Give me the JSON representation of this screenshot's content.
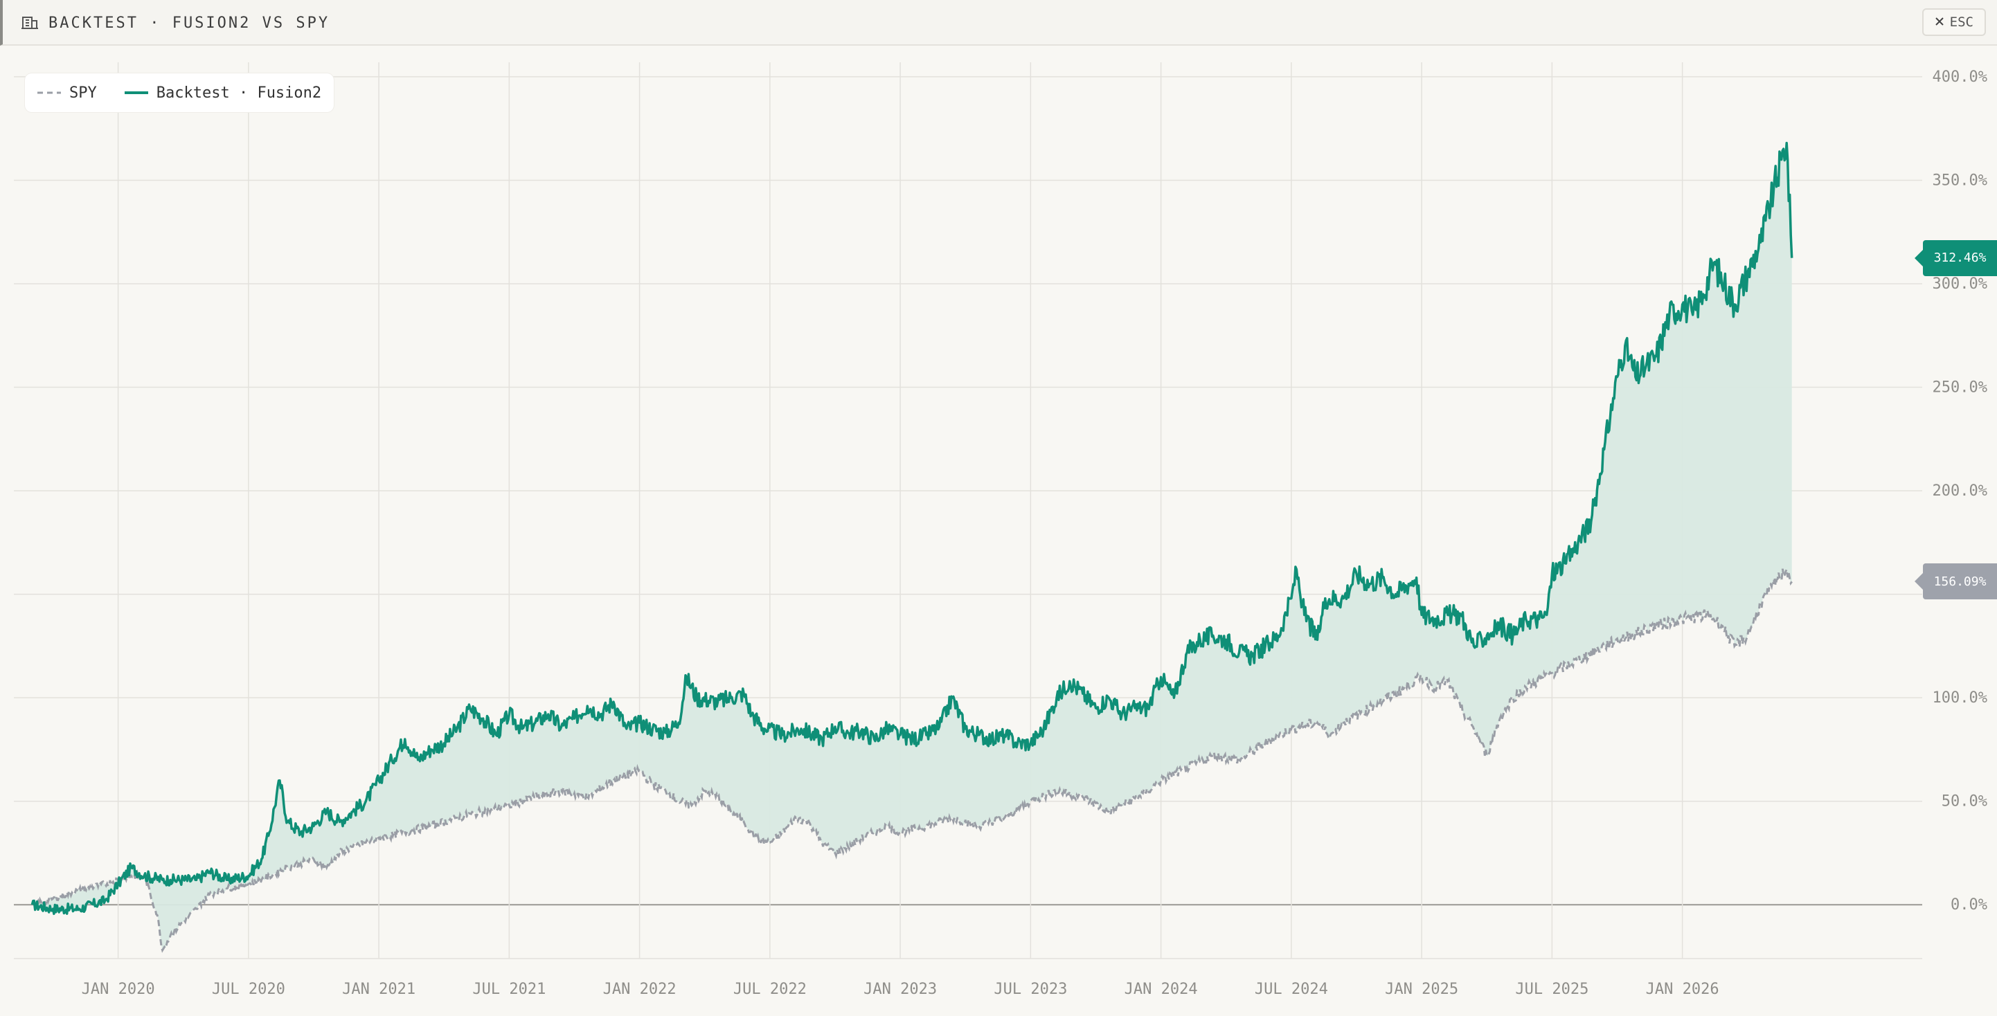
{
  "header": {
    "title": "BACKTEST · FUSION2 VS SPY",
    "esc_label": "ESC",
    "title_icon": "building-icon",
    "close_icon": "close-icon"
  },
  "legend": {
    "spy_label": "SPY",
    "backtest_label": "Backtest · Fusion2"
  },
  "badges": {
    "backtest_value": "312.46%",
    "spy_value": "156.09%"
  },
  "colors": {
    "backtest": "#0f8f77",
    "spy": "#9a9ea6",
    "fill": "#d8e9e2",
    "badge_spy": "#9ea2ab",
    "grid": "#e3e1dc",
    "zero_line": "#9a9893"
  },
  "chart_data": {
    "type": "line",
    "x_tick_labels": [
      "JAN 2020",
      "JUL 2020",
      "JAN 2021",
      "JUL 2021",
      "JAN 2022",
      "JUL 2022",
      "JAN 2023",
      "JUL 2023",
      "JAN 2024",
      "JUL 2024",
      "JAN 2025",
      "JUL 2025",
      "JAN 2026"
    ],
    "y_tick_labels": [
      "400.0%",
      "350.0%",
      "300.0%",
      "250.0%",
      "200.0%",
      "150.0%",
      "100.0%",
      "50.0%",
      "0.0%"
    ],
    "y_ticks": [
      400,
      350,
      300,
      250,
      200,
      150,
      100,
      50,
      0
    ],
    "ylim": [
      -26,
      407
    ],
    "xlim": [
      2019.6,
      2026.92
    ],
    "x_ticks": [
      2020.0,
      2020.5,
      2021.0,
      2021.5,
      2022.0,
      2022.5,
      2023.0,
      2023.5,
      2024.0,
      2024.5,
      2025.0,
      2025.5,
      2026.0
    ],
    "grid": true,
    "legend_position": "top-left",
    "series": [
      {
        "name": "Backtest · Fusion2",
        "style": "solid",
        "points": [
          [
            2019.67,
            0
          ],
          [
            2019.75,
            -2
          ],
          [
            2019.85,
            -2
          ],
          [
            2019.95,
            2
          ],
          [
            2020.0,
            10
          ],
          [
            2020.05,
            18
          ],
          [
            2020.1,
            14
          ],
          [
            2020.17,
            12
          ],
          [
            2020.2,
            12
          ],
          [
            2020.3,
            12
          ],
          [
            2020.35,
            16
          ],
          [
            2020.42,
            12
          ],
          [
            2020.5,
            14
          ],
          [
            2020.55,
            22
          ],
          [
            2020.58,
            35
          ],
          [
            2020.62,
            60
          ],
          [
            2020.65,
            40
          ],
          [
            2020.7,
            35
          ],
          [
            2020.75,
            38
          ],
          [
            2020.8,
            45
          ],
          [
            2020.85,
            40
          ],
          [
            2020.9,
            45
          ],
          [
            2020.95,
            50
          ],
          [
            2021.0,
            60
          ],
          [
            2021.05,
            70
          ],
          [
            2021.1,
            80
          ],
          [
            2021.15,
            70
          ],
          [
            2021.2,
            75
          ],
          [
            2021.25,
            78
          ],
          [
            2021.3,
            85
          ],
          [
            2021.35,
            95
          ],
          [
            2021.4,
            90
          ],
          [
            2021.45,
            82
          ],
          [
            2021.5,
            92
          ],
          [
            2021.55,
            85
          ],
          [
            2021.6,
            88
          ],
          [
            2021.65,
            92
          ],
          [
            2021.7,
            86
          ],
          [
            2021.75,
            90
          ],
          [
            2021.8,
            96
          ],
          [
            2021.85,
            92
          ],
          [
            2021.9,
            98
          ],
          [
            2021.95,
            85
          ],
          [
            2022.0,
            88
          ],
          [
            2022.05,
            85
          ],
          [
            2022.1,
            83
          ],
          [
            2022.15,
            88
          ],
          [
            2022.18,
            110
          ],
          [
            2022.22,
            100
          ],
          [
            2022.3,
            98
          ],
          [
            2022.35,
            100
          ],
          [
            2022.4,
            102
          ],
          [
            2022.43,
            92
          ],
          [
            2022.48,
            85
          ],
          [
            2022.55,
            82
          ],
          [
            2022.62,
            85
          ],
          [
            2022.7,
            80
          ],
          [
            2022.75,
            86
          ],
          [
            2022.8,
            83
          ],
          [
            2022.85,
            84
          ],
          [
            2022.9,
            80
          ],
          [
            2022.95,
            85
          ],
          [
            2023.0,
            82
          ],
          [
            2023.05,
            80
          ],
          [
            2023.1,
            82
          ],
          [
            2023.15,
            86
          ],
          [
            2023.2,
            100
          ],
          [
            2023.25,
            85
          ],
          [
            2023.3,
            82
          ],
          [
            2023.35,
            80
          ],
          [
            2023.4,
            82
          ],
          [
            2023.45,
            78
          ],
          [
            2023.5,
            78
          ],
          [
            2023.55,
            85
          ],
          [
            2023.6,
            100
          ],
          [
            2023.65,
            108
          ],
          [
            2023.7,
            102
          ],
          [
            2023.75,
            95
          ],
          [
            2023.8,
            100
          ],
          [
            2023.85,
            92
          ],
          [
            2023.9,
            95
          ],
          [
            2023.95,
            95
          ],
          [
            2024.0,
            110
          ],
          [
            2024.05,
            100
          ],
          [
            2024.1,
            122
          ],
          [
            2024.15,
            128
          ],
          [
            2024.2,
            130
          ],
          [
            2024.25,
            128
          ],
          [
            2024.3,
            122
          ],
          [
            2024.35,
            120
          ],
          [
            2024.4,
            125
          ],
          [
            2024.45,
            130
          ],
          [
            2024.5,
            148
          ],
          [
            2024.52,
            162
          ],
          [
            2024.55,
            140
          ],
          [
            2024.6,
            128
          ],
          [
            2024.63,
            148
          ],
          [
            2024.7,
            148
          ],
          [
            2024.75,
            160
          ],
          [
            2024.8,
            155
          ],
          [
            2024.85,
            158
          ],
          [
            2024.9,
            150
          ],
          [
            2024.95,
            155
          ],
          [
            2024.98,
            158
          ],
          [
            2025.0,
            140
          ],
          [
            2025.05,
            138
          ],
          [
            2025.1,
            140
          ],
          [
            2025.15,
            140
          ],
          [
            2025.2,
            125
          ],
          [
            2025.25,
            130
          ],
          [
            2025.3,
            135
          ],
          [
            2025.35,
            130
          ],
          [
            2025.4,
            138
          ],
          [
            2025.45,
            138
          ],
          [
            2025.48,
            140
          ],
          [
            2025.5,
            160
          ],
          [
            2025.55,
            165
          ],
          [
            2025.6,
            175
          ],
          [
            2025.65,
            185
          ],
          [
            2025.7,
            220
          ],
          [
            2025.75,
            255
          ],
          [
            2025.78,
            270
          ],
          [
            2025.82,
            255
          ],
          [
            2025.86,
            260
          ],
          [
            2025.9,
            265
          ],
          [
            2025.95,
            285
          ],
          [
            2026.0,
            290
          ],
          [
            2026.04,
            285
          ],
          [
            2026.08,
            295
          ],
          [
            2026.12,
            310
          ],
          [
            2026.16,
            300
          ],
          [
            2026.2,
            290
          ],
          [
            2026.25,
            305
          ],
          [
            2026.3,
            320
          ],
          [
            2026.35,
            345
          ],
          [
            2026.38,
            360
          ],
          [
            2026.4,
            368
          ],
          [
            2026.42,
            312.46
          ]
        ]
      },
      {
        "name": "SPY",
        "style": "dashed",
        "points": [
          [
            2019.67,
            0
          ],
          [
            2019.75,
            3
          ],
          [
            2019.85,
            7
          ],
          [
            2019.95,
            10
          ],
          [
            2020.0,
            12
          ],
          [
            2020.05,
            14
          ],
          [
            2020.1,
            14
          ],
          [
            2020.15,
            -5
          ],
          [
            2020.17,
            -22
          ],
          [
            2020.2,
            -15
          ],
          [
            2020.25,
            -8
          ],
          [
            2020.3,
            -2
          ],
          [
            2020.35,
            5
          ],
          [
            2020.42,
            8
          ],
          [
            2020.5,
            10
          ],
          [
            2020.55,
            12
          ],
          [
            2020.6,
            15
          ],
          [
            2020.65,
            18
          ],
          [
            2020.7,
            20
          ],
          [
            2020.75,
            22
          ],
          [
            2020.8,
            18
          ],
          [
            2020.85,
            25
          ],
          [
            2020.9,
            28
          ],
          [
            2020.95,
            30
          ],
          [
            2021.0,
            32
          ],
          [
            2021.1,
            35
          ],
          [
            2021.2,
            38
          ],
          [
            2021.3,
            42
          ],
          [
            2021.4,
            45
          ],
          [
            2021.5,
            48
          ],
          [
            2021.6,
            52
          ],
          [
            2021.7,
            55
          ],
          [
            2021.8,
            52
          ],
          [
            2021.9,
            60
          ],
          [
            2022.0,
            65
          ],
          [
            2022.05,
            58
          ],
          [
            2022.1,
            55
          ],
          [
            2022.15,
            50
          ],
          [
            2022.2,
            48
          ],
          [
            2022.25,
            55
          ],
          [
            2022.3,
            52
          ],
          [
            2022.35,
            45
          ],
          [
            2022.4,
            40
          ],
          [
            2022.45,
            32
          ],
          [
            2022.5,
            30
          ],
          [
            2022.55,
            35
          ],
          [
            2022.6,
            42
          ],
          [
            2022.65,
            40
          ],
          [
            2022.7,
            30
          ],
          [
            2022.75,
            25
          ],
          [
            2022.8,
            28
          ],
          [
            2022.85,
            32
          ],
          [
            2022.9,
            35
          ],
          [
            2022.95,
            38
          ],
          [
            2023.0,
            35
          ],
          [
            2023.1,
            38
          ],
          [
            2023.2,
            42
          ],
          [
            2023.3,
            38
          ],
          [
            2023.4,
            42
          ],
          [
            2023.5,
            50
          ],
          [
            2023.6,
            55
          ],
          [
            2023.7,
            52
          ],
          [
            2023.8,
            45
          ],
          [
            2023.85,
            48
          ],
          [
            2023.95,
            55
          ],
          [
            2024.0,
            60
          ],
          [
            2024.1,
            66
          ],
          [
            2024.2,
            72
          ],
          [
            2024.3,
            70
          ],
          [
            2024.4,
            78
          ],
          [
            2024.5,
            85
          ],
          [
            2024.6,
            88
          ],
          [
            2024.65,
            82
          ],
          [
            2024.7,
            88
          ],
          [
            2024.8,
            95
          ],
          [
            2024.9,
            102
          ],
          [
            2025.0,
            110
          ],
          [
            2025.05,
            105
          ],
          [
            2025.1,
            108
          ],
          [
            2025.15,
            95
          ],
          [
            2025.2,
            85
          ],
          [
            2025.25,
            72
          ],
          [
            2025.3,
            90
          ],
          [
            2025.35,
            100
          ],
          [
            2025.4,
            105
          ],
          [
            2025.5,
            112
          ],
          [
            2025.6,
            118
          ],
          [
            2025.7,
            125
          ],
          [
            2025.8,
            130
          ],
          [
            2025.9,
            135
          ],
          [
            2026.0,
            138
          ],
          [
            2026.1,
            140
          ],
          [
            2026.15,
            135
          ],
          [
            2026.2,
            125
          ],
          [
            2026.25,
            130
          ],
          [
            2026.3,
            145
          ],
          [
            2026.35,
            155
          ],
          [
            2026.4,
            162
          ],
          [
            2026.42,
            156.09
          ]
        ]
      }
    ]
  }
}
